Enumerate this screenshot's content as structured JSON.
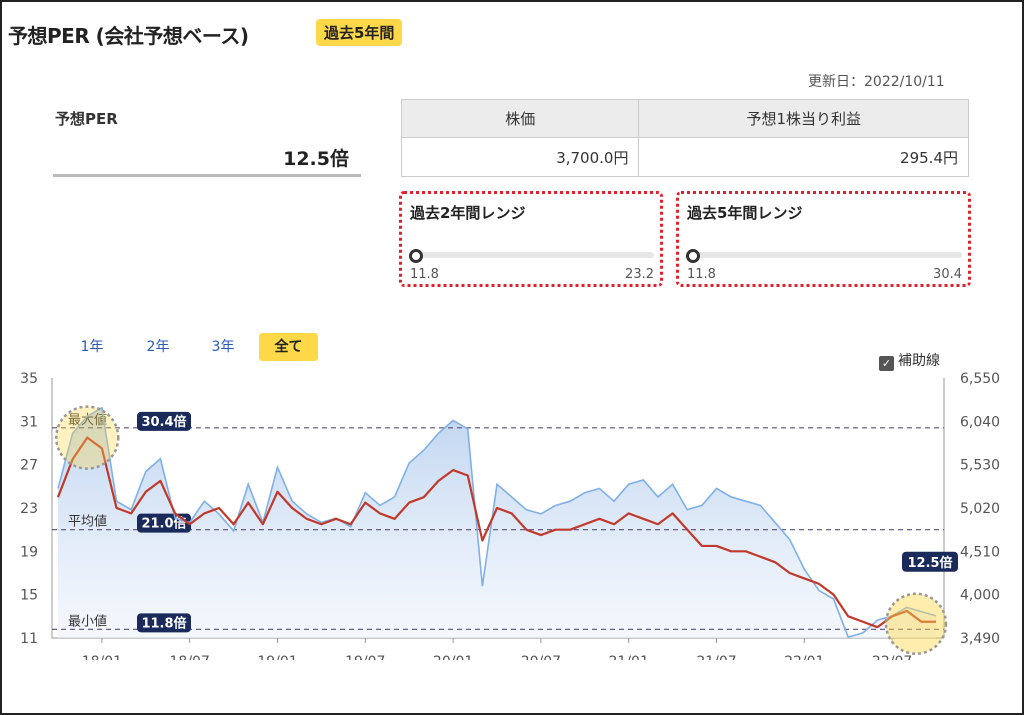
{
  "header": {
    "title": "予想PER (会社予想ベース)",
    "badge": "過去5年間",
    "updated": "更新日：2022/10/11"
  },
  "per": {
    "label": "予想PER",
    "value": "12.5倍"
  },
  "stock_table": {
    "headers": [
      "株価",
      "予想1株当り利益"
    ],
    "values": [
      "3,700.0円",
      "295.4円"
    ]
  },
  "ranges": [
    {
      "title": "過去2年間レンジ",
      "min": "11.8",
      "max": "23.2",
      "current": 12.5
    },
    {
      "title": "過去5年間レンジ",
      "min": "11.8",
      "max": "30.4",
      "current": 12.5
    }
  ],
  "period_tabs": [
    {
      "label": "1年",
      "active": false
    },
    {
      "label": "2年",
      "active": false
    },
    {
      "label": "3年",
      "active": false
    },
    {
      "label": "全て",
      "active": true
    }
  ],
  "aux_lines": {
    "label": "補助線",
    "checked": true
  },
  "colors": {
    "accent": "#ffd84a",
    "range_border": "#e0202a",
    "per_line": "#c0392b",
    "price_line": "#7fb0e8",
    "price_fill": "#cfe0f5",
    "badge_dark": "#1a2a5a"
  },
  "chart_data": {
    "type": "line",
    "x_tick_labels": [
      "18/01",
      "18/07",
      "19/01",
      "19/07",
      "20/01",
      "20/07",
      "21/01",
      "21/07",
      "22/01",
      "22/07"
    ],
    "left_axis": {
      "ticks": [
        "35",
        "31",
        "27",
        "23",
        "19",
        "15",
        "11"
      ],
      "ylim": [
        11,
        35
      ]
    },
    "right_axis": {
      "ticks": [
        "6,550",
        "6,040",
        "5,530",
        "5,020",
        "4,510",
        "4,000",
        "3,490"
      ],
      "ylim": [
        3490,
        6550
      ]
    },
    "reference_lines": [
      {
        "label": "最大値",
        "value": 30.4,
        "badge": "30.4倍"
      },
      {
        "label": "平均値",
        "value": 21.0,
        "badge": "21.0倍"
      },
      {
        "label": "最小値",
        "value": 11.8,
        "badge": "11.8倍"
      }
    ],
    "current_badge": "12.5倍",
    "series": [
      {
        "x": [
          "2017-10",
          "2017-11",
          "2017-12",
          "2018-01",
          "2018-02",
          "2018-03",
          "2018-04",
          "2018-05",
          "2018-06",
          "2018-07",
          "2018-08",
          "2018-09",
          "2018-10",
          "2018-11",
          "2018-12",
          "2019-01",
          "2019-02",
          "2019-03",
          "2019-04",
          "2019-05",
          "2019-06",
          "2019-07",
          "2019-08",
          "2019-09",
          "2019-10",
          "2019-11",
          "2019-12",
          "2020-01",
          "2020-02",
          "2020-03",
          "2020-04",
          "2020-05",
          "2020-06",
          "2020-07",
          "2020-08",
          "2020-09",
          "2020-10",
          "2020-11",
          "2020-12",
          "2021-01",
          "2021-02",
          "2021-03",
          "2021-04",
          "2021-05",
          "2021-06",
          "2021-07",
          "2021-08",
          "2021-09",
          "2021-10",
          "2021-11",
          "2021-12",
          "2022-01",
          "2022-02",
          "2022-03",
          "2022-04",
          "2022-05",
          "2022-06",
          "2022-07",
          "2022-08",
          "2022-09",
          "2022-10"
        ],
        "values": [
          24.0,
          27.5,
          29.5,
          28.5,
          23.0,
          22.5,
          24.5,
          25.5,
          22.5,
          21.5,
          22.5,
          23.0,
          21.5,
          23.5,
          21.5,
          24.5,
          23.0,
          22.0,
          21.5,
          22.0,
          21.5,
          23.5,
          22.5,
          22.0,
          23.5,
          24.0,
          25.5,
          26.5,
          26.0,
          20.0,
          23.0,
          22.5,
          21.0,
          20.5,
          21.0,
          21.0,
          21.5,
          22.0,
          21.5,
          22.5,
          22.0,
          21.5,
          22.5,
          21.0,
          19.5,
          19.5,
          19.0,
          19.0,
          18.5,
          18.0,
          17.0,
          16.5,
          16.0,
          15.0,
          13.0,
          12.5,
          12.0,
          13.0,
          13.5,
          12.5,
          12.5
        ]
      },
      {
        "x": [
          "2017-10",
          "2017-11",
          "2017-12",
          "2018-01",
          "2018-02",
          "2018-03",
          "2018-04",
          "2018-05",
          "2018-06",
          "2018-07",
          "2018-08",
          "2018-09",
          "2018-10",
          "2018-11",
          "2018-12",
          "2019-01",
          "2019-02",
          "2019-03",
          "2019-04",
          "2019-05",
          "2019-06",
          "2019-07",
          "2019-08",
          "2019-09",
          "2019-10",
          "2019-11",
          "2019-12",
          "2020-01",
          "2020-02",
          "2020-03",
          "2020-04",
          "2020-05",
          "2020-06",
          "2020-07",
          "2020-08",
          "2020-09",
          "2020-10",
          "2020-11",
          "2020-12",
          "2021-01",
          "2021-02",
          "2021-03",
          "2021-04",
          "2021-05",
          "2021-06",
          "2021-07",
          "2021-08",
          "2021-09",
          "2021-10",
          "2021-11",
          "2021-12",
          "2022-01",
          "2022-02",
          "2022-03",
          "2022-04",
          "2022-05",
          "2022-06",
          "2022-07",
          "2022-08",
          "2022-09",
          "2022-10"
        ],
        "values": [
          5250,
          5900,
          6100,
          6200,
          5100,
          5000,
          5450,
          5600,
          4900,
          4850,
          5100,
          4950,
          4750,
          5300,
          4850,
          5500,
          5100,
          4950,
          4850,
          4900,
          4800,
          5200,
          5050,
          5150,
          5550,
          5700,
          5900,
          6050,
          5950,
          4100,
          5300,
          5150,
          5000,
          4950,
          5050,
          5100,
          5200,
          5250,
          5100,
          5300,
          5350,
          5150,
          5300,
          5000,
          5050,
          5250,
          5150,
          5100,
          5050,
          4850,
          4650,
          4300,
          4050,
          3950,
          3500,
          3550,
          3700,
          3750,
          3850,
          3800,
          3750
        ]
      }
    ]
  }
}
